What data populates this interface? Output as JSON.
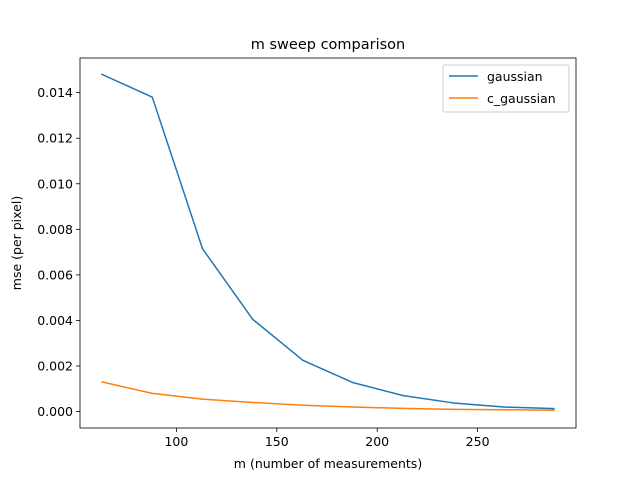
{
  "chart_data": {
    "type": "line",
    "title": "m sweep comparison",
    "xlabel": "m (number of measurements)",
    "ylabel": "mse (per pixel)",
    "xlim": [
      52,
      299
    ],
    "ylim": [
      -0.00072,
      0.01552
    ],
    "xticks": [
      100,
      150,
      200,
      250
    ],
    "xtick_labels": [
      "100",
      "150",
      "200",
      "250"
    ],
    "yticks": [
      0.0,
      0.002,
      0.004,
      0.006,
      0.008,
      0.01,
      0.012,
      0.014
    ],
    "ytick_labels": [
      "0.000",
      "0.002",
      "0.004",
      "0.006",
      "0.008",
      "0.010",
      "0.012",
      "0.014"
    ],
    "grid": false,
    "legend_position": "top-right",
    "x": [
      63,
      88,
      113,
      138,
      163,
      188,
      213,
      238,
      263,
      288
    ],
    "series": [
      {
        "name": "gaussian",
        "color": "#1f77b4",
        "values": [
          0.0148,
          0.0138,
          0.00715,
          0.00405,
          0.00225,
          0.00127,
          0.0007,
          0.00038,
          0.0002,
          0.00013
        ]
      },
      {
        "name": "c_gaussian",
        "color": "#ff7f0e",
        "values": [
          0.0013,
          0.0008,
          0.00055,
          0.0004,
          0.00028,
          0.0002,
          0.00014,
          0.0001,
          8e-05,
          6e-05
        ]
      }
    ]
  }
}
